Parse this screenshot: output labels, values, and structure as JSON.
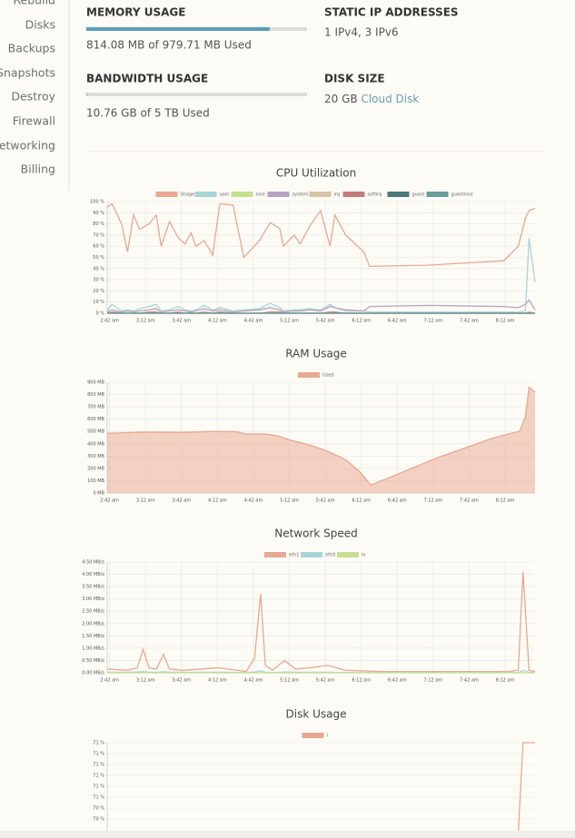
{
  "sidebar": [
    "Rebuild",
    "Disks",
    "Backups",
    "Snapshots",
    "Destroy",
    "Firewall",
    "Networking",
    "Billing"
  ],
  "memory": {
    "label": "MEMORY USAGE",
    "text": "814.08 MB of 979.71 MB Used",
    "used": 814.08,
    "total": 979.71
  },
  "bandwidth": {
    "label": "BANDWIDTH USAGE",
    "text": "10.76 GB of 5 TB Used",
    "used": 10.76,
    "total": 5000
  },
  "static_ip": {
    "label": "STATIC IP ADDRESSES",
    "text": "1 IPv4, 3 IPv6"
  },
  "disk_size": {
    "label": "DISK SIZE",
    "size": "20 GB",
    "kind": "Cloud Disk"
  },
  "chart_data": [
    {
      "type": "line",
      "title": "CPU Utilization",
      "grid": true,
      "x": [
        160,
        164,
        172,
        177,
        182,
        187,
        195,
        201,
        205,
        212,
        219,
        225,
        230,
        234,
        241,
        248,
        254,
        265,
        274,
        287,
        296,
        304,
        307,
        316,
        321,
        329,
        338,
        346,
        350,
        359,
        374,
        379,
        427,
        491,
        503,
        509,
        512,
        517
      ],
      "xlim": [
        160,
        517
      ],
      "xticks": [
        {
          "value": 162,
          "label": "2:42 am"
        },
        {
          "value": 192,
          "label": "3:12 am"
        },
        {
          "value": 222,
          "label": "3:42 am"
        },
        {
          "value": 252,
          "label": "4:12 am"
        },
        {
          "value": 282,
          "label": "4:42 am"
        },
        {
          "value": 312,
          "label": "5:12 am"
        },
        {
          "value": 342,
          "label": "5:42 am"
        },
        {
          "value": 372,
          "label": "6:12 am"
        },
        {
          "value": 402,
          "label": "6:42 am"
        },
        {
          "value": 432,
          "label": "7:12 am"
        },
        {
          "value": 462,
          "label": "7:42 am"
        },
        {
          "value": 492,
          "label": "8:12 am"
        }
      ],
      "ylim": [
        0,
        100
      ],
      "yticks": [
        {
          "value": 0,
          "label": "0 %"
        },
        {
          "value": 10,
          "label": "10 %"
        },
        {
          "value": 20,
          "label": "20 %"
        },
        {
          "value": 30,
          "label": "30 %"
        },
        {
          "value": 40,
          "label": "40 %"
        },
        {
          "value": 50,
          "label": "50 %"
        },
        {
          "value": 60,
          "label": "60 %"
        },
        {
          "value": 70,
          "label": "70 %"
        },
        {
          "value": 80,
          "label": "80 %"
        },
        {
          "value": 90,
          "label": "90 %"
        },
        {
          "value": 100,
          "label": "100 %"
        }
      ],
      "series": [
        {
          "name": "Usage",
          "color": "#e8a891",
          "values": [
            95,
            98,
            80,
            55,
            88,
            75,
            80,
            88,
            60,
            82,
            68,
            62,
            72,
            60,
            65,
            52,
            98,
            97,
            50,
            65,
            81,
            76,
            60,
            70,
            62,
            78,
            92,
            60,
            88,
            70,
            55,
            42,
            43,
            47,
            60,
            85,
            92,
            94
          ]
        },
        {
          "name": "user",
          "color": "#a8d4d8",
          "values": [
            2,
            8,
            2,
            3,
            2,
            4,
            6,
            8,
            2,
            3,
            6,
            3,
            2,
            3,
            7,
            3,
            5,
            2,
            3,
            4,
            9,
            5,
            2,
            3,
            3,
            4,
            3,
            8,
            5,
            2,
            2,
            1,
            1,
            1,
            1,
            2,
            67,
            28
          ]
        },
        {
          "name": "nice",
          "color": "#c5e08e",
          "values": [
            0,
            0,
            0,
            0,
            0,
            0,
            0,
            0,
            0,
            0,
            0,
            0,
            0,
            0,
            0,
            0,
            0,
            0,
            0,
            0,
            0,
            0,
            0,
            0,
            0,
            0,
            0,
            0,
            0,
            0,
            0,
            0,
            0,
            0,
            0,
            0,
            0,
            0
          ]
        },
        {
          "name": "system",
          "color": "#b8a2c4",
          "values": [
            1,
            3,
            1,
            2,
            1,
            2,
            3,
            4,
            1,
            2,
            3,
            2,
            1,
            2,
            4,
            2,
            3,
            1,
            2,
            3,
            5,
            3,
            1,
            2,
            2,
            3,
            2,
            6,
            5,
            3,
            2,
            6,
            7,
            6,
            5,
            8,
            12,
            3
          ]
        },
        {
          "name": "irq",
          "color": "#d9c4a6",
          "values": [
            0,
            0,
            0,
            0,
            0,
            0,
            0,
            0,
            0,
            0,
            0,
            0,
            0,
            0,
            0,
            0,
            0,
            0,
            0,
            0,
            0,
            0,
            0,
            0,
            0,
            0,
            0,
            0,
            0,
            0,
            0,
            0,
            0,
            0,
            0,
            0,
            0,
            0
          ]
        },
        {
          "name": "softirq",
          "color": "#c47c7a",
          "values": [
            0,
            1,
            0,
            0,
            0,
            0,
            1,
            1,
            0,
            0,
            1,
            0,
            0,
            0,
            1,
            0,
            1,
            0,
            0,
            0,
            1,
            1,
            0,
            0,
            0,
            0,
            0,
            1,
            1,
            0,
            0,
            0,
            0,
            0,
            0,
            0,
            1,
            0
          ]
        },
        {
          "name": "guest",
          "color": "#4a7a7a",
          "values": [
            0,
            0,
            0,
            0,
            0,
            0,
            0,
            0,
            0,
            0,
            0,
            0,
            0,
            0,
            0,
            0,
            0,
            0,
            0,
            0,
            0,
            0,
            0,
            0,
            0,
            0,
            0,
            0,
            0,
            0,
            0,
            0,
            0,
            0,
            0,
            0,
            0,
            0
          ]
        },
        {
          "name": "guestnice",
          "color": "#6a9e9e",
          "values": [
            0,
            0,
            0,
            0,
            0,
            0,
            0,
            0,
            0,
            0,
            0,
            0,
            0,
            0,
            0,
            0,
            0,
            0,
            0,
            0,
            0,
            0,
            0,
            0,
            0,
            0,
            0,
            0,
            0,
            0,
            0,
            0,
            0,
            0,
            0,
            0,
            0,
            0
          ]
        }
      ]
    },
    {
      "type": "area",
      "title": "RAM Usage",
      "grid": true,
      "x": [
        160,
        177,
        192,
        223,
        245,
        268,
        276,
        291,
        302,
        313,
        329,
        344,
        359,
        370,
        380,
        389,
        434,
        480,
        495,
        504,
        509,
        512,
        517
      ],
      "xlim": [
        160,
        517
      ],
      "xticks": [
        {
          "value": 162,
          "label": "2:42 am"
        },
        {
          "value": 192,
          "label": "3:12 am"
        },
        {
          "value": 222,
          "label": "3:42 am"
        },
        {
          "value": 252,
          "label": "4:12 am"
        },
        {
          "value": 282,
          "label": "4:42 am"
        },
        {
          "value": 312,
          "label": "5:12 am"
        },
        {
          "value": 342,
          "label": "5:42 am"
        },
        {
          "value": 372,
          "label": "6:12 am"
        },
        {
          "value": 402,
          "label": "6:42 am"
        },
        {
          "value": 432,
          "label": "7:12 am"
        },
        {
          "value": 462,
          "label": "7:42 am"
        },
        {
          "value": 492,
          "label": "8:12 am"
        }
      ],
      "ylim": [
        0,
        900
      ],
      "yticks": [
        {
          "value": 0,
          "label": "0 MB"
        },
        {
          "value": 100,
          "label": "100 MB"
        },
        {
          "value": 200,
          "label": "200 MB"
        },
        {
          "value": 300,
          "label": "300 MB"
        },
        {
          "value": 400,
          "label": "400 MB"
        },
        {
          "value": 500,
          "label": "500 MB"
        },
        {
          "value": 600,
          "label": "600 MB"
        },
        {
          "value": 700,
          "label": "700 MB"
        },
        {
          "value": 800,
          "label": "800 MB"
        },
        {
          "value": 900,
          "label": "900 MB"
        }
      ],
      "series": [
        {
          "name": "Used",
          "color": "#e8a891",
          "values": [
            485,
            490,
            495,
            492,
            500,
            498,
            478,
            480,
            465,
            430,
            390,
            340,
            270,
            180,
            65,
            100,
            280,
            440,
            480,
            500,
            620,
            860,
            820
          ]
        }
      ]
    },
    {
      "type": "line",
      "title": "Network Speed",
      "grid": true,
      "x": [
        160,
        177,
        185,
        190,
        195,
        201,
        207,
        212,
        223,
        253,
        276,
        283,
        288,
        292,
        298,
        308,
        317,
        329,
        344,
        359,
        389,
        450,
        495,
        503,
        507,
        512,
        517
      ],
      "xlim": [
        160,
        517
      ],
      "xticks": [
        {
          "value": 162,
          "label": "2:42 am"
        },
        {
          "value": 192,
          "label": "3:12 am"
        },
        {
          "value": 222,
          "label": "3:42 am"
        },
        {
          "value": 252,
          "label": "4:12 am"
        },
        {
          "value": 282,
          "label": "4:42 am"
        },
        {
          "value": 312,
          "label": "5:12 am"
        },
        {
          "value": 342,
          "label": "5:42 am"
        },
        {
          "value": 372,
          "label": "6:12 am"
        },
        {
          "value": 402,
          "label": "6:42 am"
        },
        {
          "value": 432,
          "label": "7:12 am"
        },
        {
          "value": 462,
          "label": "7:42 am"
        },
        {
          "value": 492,
          "label": "8:12 am"
        }
      ],
      "ylim": [
        0,
        4.5
      ],
      "yticks": [
        {
          "value": 0,
          "label": "0.00 MB/s"
        },
        {
          "value": 0.5,
          "label": "0.50 MB/s"
        },
        {
          "value": 1,
          "label": "1.00 MB/s"
        },
        {
          "value": 1.5,
          "label": "1.50 MB/s"
        },
        {
          "value": 2,
          "label": "2.00 MB/s"
        },
        {
          "value": 2.5,
          "label": "2.50 MB/s"
        },
        {
          "value": 3,
          "label": "3.00 MB/s"
        },
        {
          "value": 3.5,
          "label": "3.50 MB/s"
        },
        {
          "value": 4,
          "label": "4.00 MB/s"
        },
        {
          "value": 4.5,
          "label": "4.50 MB/s"
        }
      ],
      "series": [
        {
          "name": "eth1",
          "color": "#e8a891",
          "values": [
            0.15,
            0.1,
            0.2,
            0.95,
            0.2,
            0.15,
            0.75,
            0.15,
            0.1,
            0.2,
            0.05,
            0.6,
            3.2,
            0.3,
            0.1,
            0.5,
            0.15,
            0.2,
            0.3,
            0.1,
            0.05,
            0.05,
            0.05,
            0.1,
            4.1,
            0.1,
            0.05
          ]
        },
        {
          "name": "eth0",
          "color": "#a8d4d8",
          "values": [
            0.02,
            0.02,
            0.03,
            0.05,
            0.02,
            0.02,
            0.04,
            0.02,
            0.02,
            0.02,
            0.01,
            0.03,
            0.08,
            0.02,
            0.01,
            0.03,
            0.02,
            0.02,
            0.02,
            0.01,
            0.01,
            0.01,
            0.01,
            0.01,
            0.1,
            0.02,
            0.01
          ]
        },
        {
          "name": "lo",
          "color": "#c5e08e",
          "values": [
            0,
            0,
            0,
            0,
            0,
            0,
            0,
            0,
            0,
            0,
            0,
            0,
            0,
            0,
            0,
            0,
            0,
            0,
            0,
            0,
            0,
            0,
            0,
            0,
            0,
            0,
            0
          ]
        }
      ]
    },
    {
      "type": "line",
      "title": "Disk Usage",
      "grid": true,
      "x": [
        503,
        507,
        517
      ],
      "xlim": [
        160,
        517
      ],
      "ylim": [
        70.2,
        71.2
      ],
      "yticks": [
        {
          "value": 71.2,
          "label": "71 %"
        },
        {
          "value": 71.08,
          "label": "71 %"
        },
        {
          "value": 70.96,
          "label": "71 %"
        },
        {
          "value": 70.84,
          "label": "71 %"
        },
        {
          "value": 70.72,
          "label": "71 %"
        },
        {
          "value": 70.6,
          "label": "71 %"
        },
        {
          "value": 70.48,
          "label": "70 %"
        },
        {
          "value": 70.36,
          "label": "70 %"
        }
      ],
      "series": [
        {
          "name": "/",
          "color": "#e8a891",
          "values": [
            70.2,
            71.2,
            71.2
          ]
        }
      ]
    }
  ]
}
